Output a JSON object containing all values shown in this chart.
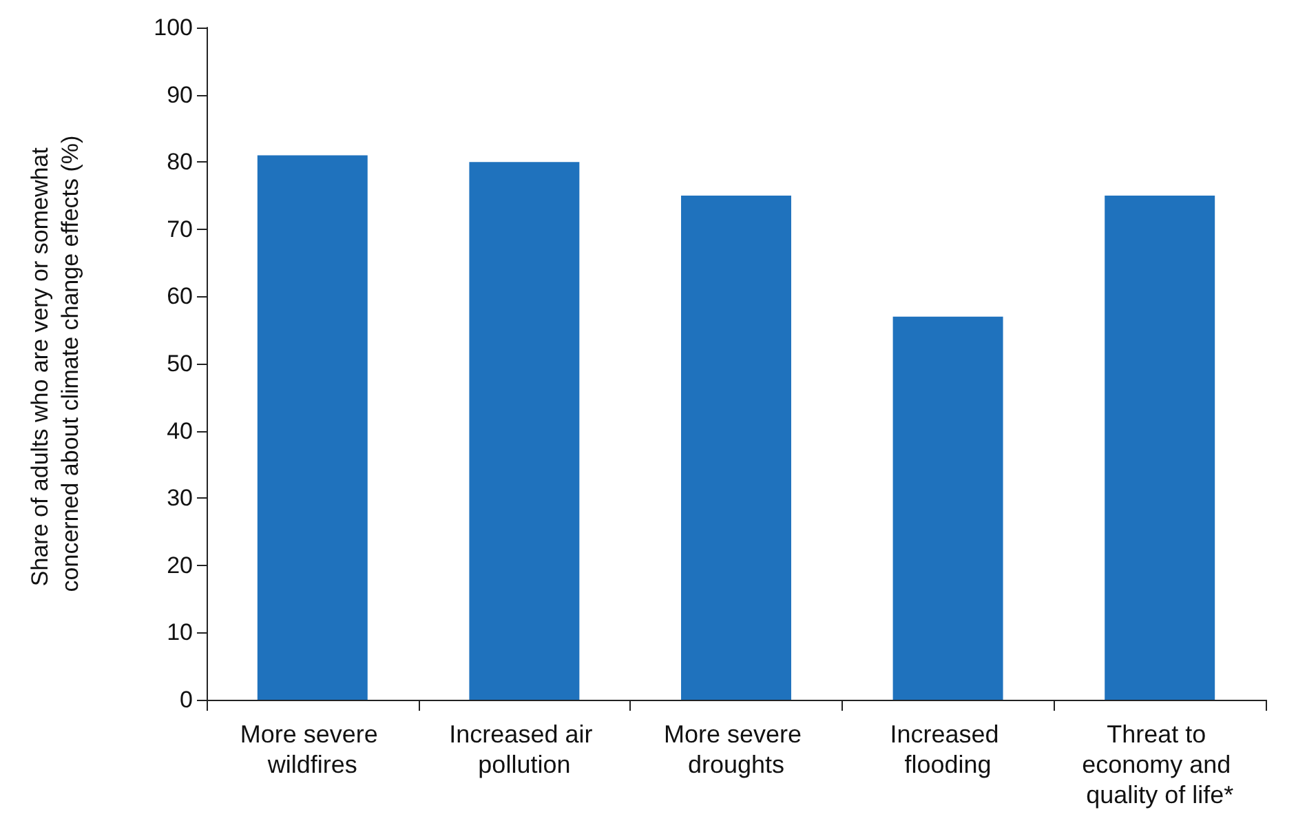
{
  "chart_data": {
    "type": "bar",
    "ylabel": "Share of adults who are very or somewhat concerned about climate change effects (%)",
    "categories": [
      "More severe wildfires",
      "Increased air pollution",
      "More severe droughts",
      "Increased flooding",
      "Threat to economy and quality of life*"
    ],
    "values": [
      81,
      80,
      75,
      57,
      75
    ],
    "color": "#1f72bd",
    "ylim": [
      0,
      100
    ],
    "yticks": [
      0,
      10,
      20,
      30,
      40,
      50,
      60,
      70,
      80,
      90,
      100
    ],
    "grid": false
  }
}
